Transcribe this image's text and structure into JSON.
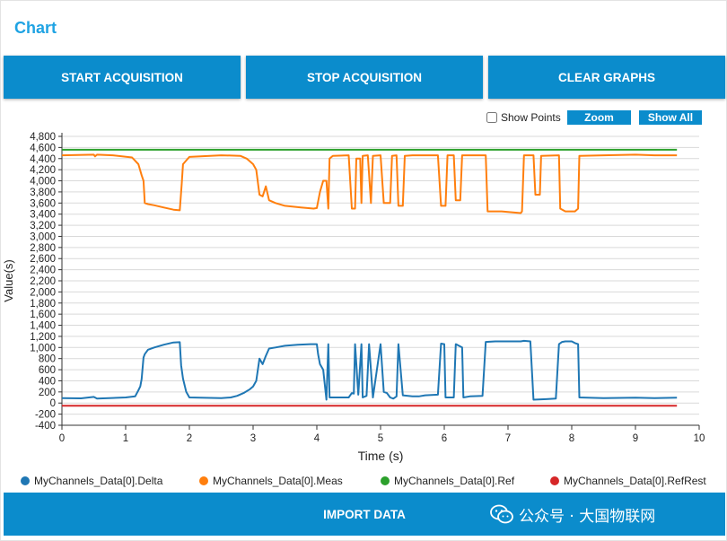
{
  "page": {
    "title": "Chart"
  },
  "toolbar": {
    "start_label": "START ACQUISITION",
    "stop_label": "STOP ACQUISITION",
    "clear_label": "CLEAR GRAPHS",
    "show_points_label": "Show Points",
    "show_points_checked": false,
    "zoom_label": "Zoom",
    "show_all_label": "Show All"
  },
  "footer": {
    "import_label": "IMPORT DATA"
  },
  "watermark": {
    "text": "公众号 · 大国物联网",
    "icon": "wechat-official-account-icon"
  },
  "colors": {
    "accent": "#0b8ccc",
    "title": "#1fa3e3",
    "series": [
      "#1f77b4",
      "#ff7f0e",
      "#2ca02c",
      "#d62728"
    ]
  },
  "chart_data": {
    "type": "line",
    "title": "",
    "xlabel": "Time (s)",
    "ylabel": "Value(s)",
    "xlim": [
      0,
      10
    ],
    "ylim": [
      -400,
      4800
    ],
    "x_ticks": [
      0,
      1,
      2,
      3,
      4,
      5,
      6,
      7,
      8,
      9,
      10
    ],
    "y_ticks": [
      -400,
      -200,
      0,
      200,
      400,
      600,
      800,
      1000,
      1200,
      1400,
      1600,
      1800,
      2000,
      2200,
      2400,
      2600,
      2800,
      3000,
      3200,
      3400,
      3600,
      3800,
      4000,
      4200,
      4400,
      4600,
      4800
    ],
    "y_tick_labels": [
      "-400",
      "-200",
      "0",
      "200",
      "400",
      "600",
      "800",
      "1,000",
      "1,200",
      "1,400",
      "1,600",
      "1,800",
      "2,000",
      "2,200",
      "2,400",
      "2,600",
      "2,800",
      "3,000",
      "3,200",
      "3,400",
      "3,600",
      "3,800",
      "4,000",
      "4,200",
      "4,400",
      "4,600",
      "4,800"
    ],
    "grid": true,
    "legend_position": "bottom",
    "series": [
      {
        "name": "MyChannels_Data[0].Delta",
        "color": "#1f77b4",
        "points": [
          [
            0,
            90
          ],
          [
            0.3,
            85
          ],
          [
            0.5,
            110
          ],
          [
            0.55,
            80
          ],
          [
            1.0,
            100
          ],
          [
            1.15,
            120
          ],
          [
            1.2,
            230
          ],
          [
            1.23,
            300
          ],
          [
            1.25,
            430
          ],
          [
            1.28,
            820
          ],
          [
            1.3,
            880
          ],
          [
            1.35,
            960
          ],
          [
            1.45,
            1000
          ],
          [
            1.6,
            1050
          ],
          [
            1.75,
            1090
          ],
          [
            1.85,
            1095
          ],
          [
            1.87,
            680
          ],
          [
            1.9,
            440
          ],
          [
            1.95,
            200
          ],
          [
            2.0,
            100
          ],
          [
            2.5,
            90
          ],
          [
            2.65,
            100
          ],
          [
            2.75,
            130
          ],
          [
            2.85,
            180
          ],
          [
            2.95,
            250
          ],
          [
            3.0,
            300
          ],
          [
            3.05,
            400
          ],
          [
            3.1,
            800
          ],
          [
            3.15,
            700
          ],
          [
            3.2,
            850
          ],
          [
            3.25,
            980
          ],
          [
            3.35,
            1000
          ],
          [
            3.5,
            1030
          ],
          [
            3.7,
            1050
          ],
          [
            3.9,
            1060
          ],
          [
            4.0,
            1060
          ],
          [
            4.02,
            880
          ],
          [
            4.05,
            700
          ],
          [
            4.1,
            600
          ],
          [
            4.15,
            60
          ],
          [
            4.18,
            1060
          ],
          [
            4.2,
            100
          ],
          [
            4.5,
            100
          ],
          [
            4.55,
            180
          ],
          [
            4.58,
            170
          ],
          [
            4.6,
            1060
          ],
          [
            4.65,
            150
          ],
          [
            4.7,
            1060
          ],
          [
            4.72,
            100
          ],
          [
            4.78,
            130
          ],
          [
            4.82,
            1060
          ],
          [
            4.88,
            100
          ],
          [
            5.0,
            1060
          ],
          [
            5.05,
            200
          ],
          [
            5.1,
            180
          ],
          [
            5.15,
            100
          ],
          [
            5.2,
            80
          ],
          [
            5.25,
            120
          ],
          [
            5.28,
            1060
          ],
          [
            5.35,
            140
          ],
          [
            5.5,
            120
          ],
          [
            5.6,
            120
          ],
          [
            5.7,
            140
          ],
          [
            5.9,
            150
          ],
          [
            5.95,
            1070
          ],
          [
            6.0,
            1060
          ],
          [
            6.02,
            100
          ],
          [
            6.15,
            100
          ],
          [
            6.18,
            1060
          ],
          [
            6.2,
            1050
          ],
          [
            6.28,
            1000
          ],
          [
            6.3,
            100
          ],
          [
            6.4,
            120
          ],
          [
            6.6,
            130
          ],
          [
            6.65,
            1100
          ],
          [
            6.8,
            1110
          ],
          [
            6.9,
            1110
          ],
          [
            7.2,
            1110
          ],
          [
            7.25,
            1120
          ],
          [
            7.35,
            1110
          ],
          [
            7.4,
            60
          ],
          [
            7.6,
            70
          ],
          [
            7.75,
            80
          ],
          [
            7.8,
            1060
          ],
          [
            7.85,
            1100
          ],
          [
            7.9,
            1110
          ],
          [
            8.0,
            1110
          ],
          [
            8.05,
            1080
          ],
          [
            8.1,
            1060
          ],
          [
            8.12,
            100
          ],
          [
            8.5,
            90
          ],
          [
            9.0,
            95
          ],
          [
            9.3,
            90
          ],
          [
            9.65,
            95
          ]
        ]
      },
      {
        "name": "MyChannels_Data[0].Meas",
        "color": "#ff7f0e",
        "points": [
          [
            0,
            4460
          ],
          [
            0.5,
            4470
          ],
          [
            0.52,
            4440
          ],
          [
            0.55,
            4470
          ],
          [
            0.8,
            4460
          ],
          [
            1.1,
            4420
          ],
          [
            1.15,
            4360
          ],
          [
            1.2,
            4300
          ],
          [
            1.25,
            4100
          ],
          [
            1.28,
            4000
          ],
          [
            1.3,
            3600
          ],
          [
            1.35,
            3580
          ],
          [
            1.45,
            3560
          ],
          [
            1.6,
            3520
          ],
          [
            1.75,
            3480
          ],
          [
            1.85,
            3470
          ],
          [
            1.88,
            3950
          ],
          [
            1.9,
            4300
          ],
          [
            2.0,
            4430
          ],
          [
            2.5,
            4460
          ],
          [
            2.8,
            4450
          ],
          [
            2.9,
            4400
          ],
          [
            3.0,
            4300
          ],
          [
            3.05,
            4200
          ],
          [
            3.1,
            3750
          ],
          [
            3.15,
            3720
          ],
          [
            3.2,
            3900
          ],
          [
            3.25,
            3650
          ],
          [
            3.35,
            3600
          ],
          [
            3.5,
            3550
          ],
          [
            3.75,
            3520
          ],
          [
            3.95,
            3500
          ],
          [
            4.0,
            3510
          ],
          [
            4.05,
            3800
          ],
          [
            4.1,
            4000
          ],
          [
            4.15,
            4000
          ],
          [
            4.18,
            3500
          ],
          [
            4.2,
            4400
          ],
          [
            4.25,
            4450
          ],
          [
            4.5,
            4460
          ],
          [
            4.55,
            3500
          ],
          [
            4.6,
            3500
          ],
          [
            4.62,
            4400
          ],
          [
            4.68,
            4400
          ],
          [
            4.7,
            3600
          ],
          [
            4.72,
            4450
          ],
          [
            4.8,
            4460
          ],
          [
            4.85,
            3600
          ],
          [
            4.88,
            4450
          ],
          [
            5.0,
            4460
          ],
          [
            5.05,
            3600
          ],
          [
            5.15,
            3600
          ],
          [
            5.18,
            4450
          ],
          [
            5.25,
            4460
          ],
          [
            5.28,
            3550
          ],
          [
            5.35,
            3550
          ],
          [
            5.38,
            4450
          ],
          [
            5.5,
            4460
          ],
          [
            5.9,
            4460
          ],
          [
            5.95,
            3550
          ],
          [
            6.02,
            3550
          ],
          [
            6.05,
            4460
          ],
          [
            6.15,
            4460
          ],
          [
            6.18,
            3650
          ],
          [
            6.25,
            3650
          ],
          [
            6.28,
            4460
          ],
          [
            6.65,
            4460
          ],
          [
            6.68,
            3450
          ],
          [
            6.9,
            3450
          ],
          [
            7.2,
            3420
          ],
          [
            7.22,
            3450
          ],
          [
            7.25,
            4460
          ],
          [
            7.3,
            4460
          ],
          [
            7.4,
            4460
          ],
          [
            7.43,
            3750
          ],
          [
            7.5,
            3750
          ],
          [
            7.52,
            4450
          ],
          [
            7.8,
            4460
          ],
          [
            7.82,
            3500
          ],
          [
            7.9,
            3450
          ],
          [
            8.05,
            3450
          ],
          [
            8.1,
            3500
          ],
          [
            8.12,
            4450
          ],
          [
            8.5,
            4460
          ],
          [
            9.0,
            4470
          ],
          [
            9.3,
            4460
          ],
          [
            9.65,
            4460
          ]
        ]
      },
      {
        "name": "MyChannels_Data[0].Ref",
        "color": "#2ca02c",
        "points": [
          [
            0,
            4560
          ],
          [
            9.65,
            4560
          ]
        ]
      },
      {
        "name": "MyChannels_Data[0].RefRest",
        "color": "#d62728",
        "points": [
          [
            0,
            -50
          ],
          [
            9.65,
            -50
          ]
        ]
      }
    ]
  }
}
